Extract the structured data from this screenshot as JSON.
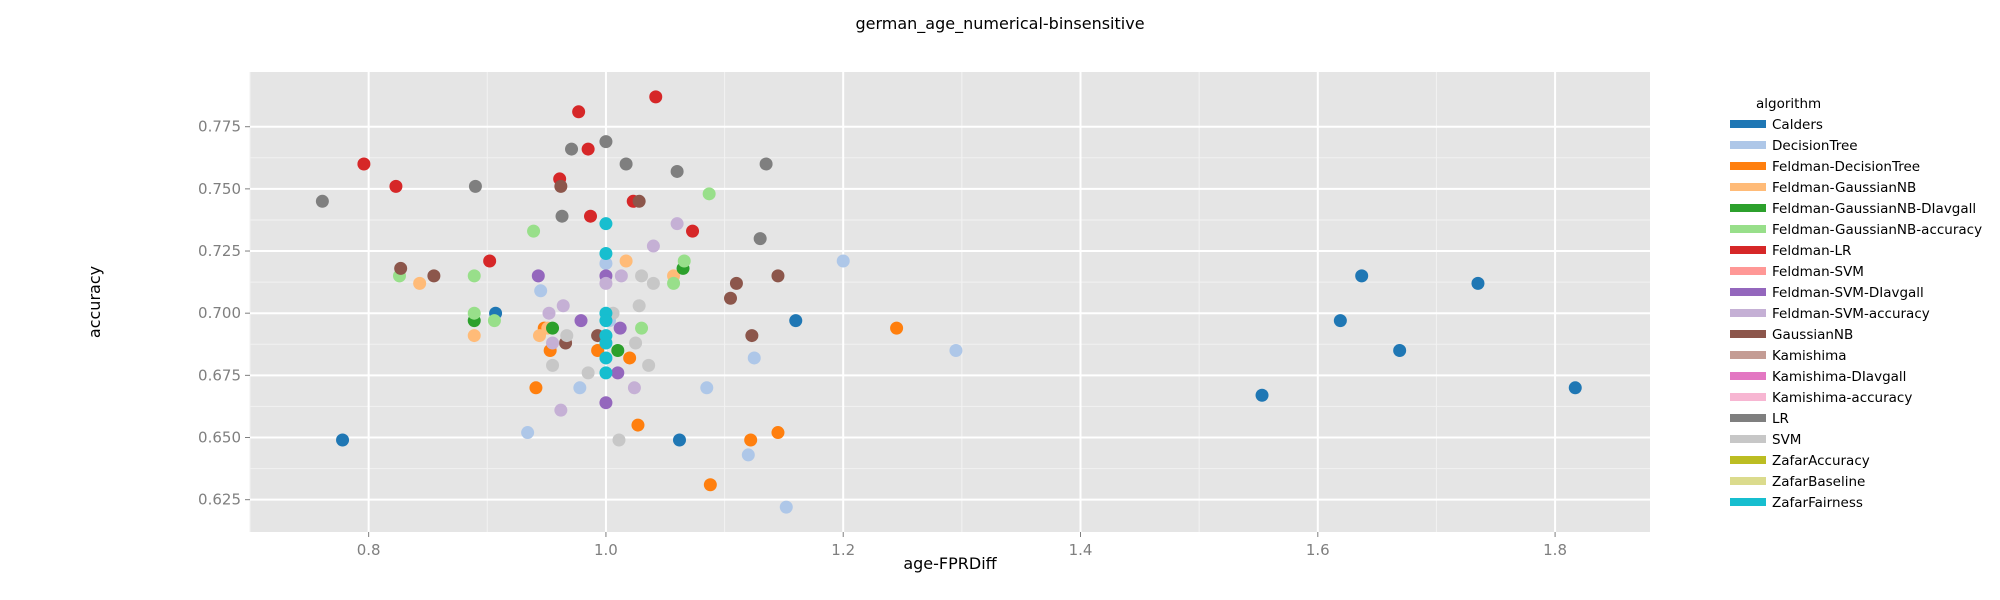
{
  "chart_data": {
    "type": "scatter",
    "title": "german_age_numerical-binsensitive",
    "xlabel": "age-FPRDiff",
    "ylabel": "accuracy",
    "xlim": [
      0.7,
      1.88
    ],
    "ylim": [
      0.612,
      0.797
    ],
    "x_ticks": [
      0.8,
      1.0,
      1.2,
      1.4,
      1.6,
      1.8
    ],
    "x_tick_labels": [
      "0.8",
      "1.0",
      "1.2",
      "1.4",
      "1.6",
      "1.8"
    ],
    "y_ticks": [
      0.625,
      0.65,
      0.675,
      0.7,
      0.725,
      0.75,
      0.775
    ],
    "y_tick_labels": [
      "0.625",
      "0.650",
      "0.675",
      "0.700",
      "0.725",
      "0.750",
      "0.775"
    ],
    "grid": true,
    "legend_title": "algorithm",
    "legend_position": "right",
    "series": [
      {
        "name": "Calders",
        "color": "#1f77b4",
        "points": [
          [
            0.778,
            0.649
          ],
          [
            0.907,
            0.7
          ],
          [
            1.062,
            0.649
          ],
          [
            1.16,
            0.697
          ],
          [
            1.553,
            0.667
          ],
          [
            1.619,
            0.697
          ],
          [
            1.637,
            0.715
          ],
          [
            1.669,
            0.685
          ],
          [
            1.735,
            0.712
          ],
          [
            1.817,
            0.67
          ]
        ]
      },
      {
        "name": "DecisionTree",
        "color": "#aec7e8",
        "points": [
          [
            0.934,
            0.652
          ],
          [
            0.945,
            0.709
          ],
          [
            0.978,
            0.67
          ],
          [
            1.0,
            0.72
          ],
          [
            1.085,
            0.67
          ],
          [
            1.12,
            0.643
          ],
          [
            1.125,
            0.682
          ],
          [
            1.152,
            0.622
          ],
          [
            1.2,
            0.721
          ],
          [
            1.295,
            0.685
          ],
          [
            1.003,
            0.697
          ]
        ]
      },
      {
        "name": "Feldman-DecisionTree",
        "color": "#ff7f0e",
        "points": [
          [
            0.941,
            0.67
          ],
          [
            0.953,
            0.685
          ],
          [
            0.993,
            0.685
          ],
          [
            1.02,
            0.682
          ],
          [
            1.027,
            0.655
          ],
          [
            1.088,
            0.631
          ],
          [
            1.122,
            0.649
          ],
          [
            1.145,
            0.652
          ],
          [
            1.245,
            0.694
          ],
          [
            0.948,
            0.694
          ]
        ]
      },
      {
        "name": "Feldman-GaussianNB",
        "color": "#ffbb78",
        "points": [
          [
            0.843,
            0.712
          ],
          [
            0.889,
            0.691
          ],
          [
            0.944,
            0.691
          ],
          [
            0.951,
            0.694
          ],
          [
            1.017,
            0.721
          ],
          [
            1.057,
            0.715
          ]
        ]
      },
      {
        "name": "Feldman-GaussianNB-DIavgall",
        "color": "#2ca02c",
        "points": [
          [
            0.889,
            0.697
          ],
          [
            0.955,
            0.694
          ],
          [
            1.01,
            0.685
          ],
          [
            1.065,
            0.718
          ]
        ]
      },
      {
        "name": "Feldman-GaussianNB-accuracy",
        "color": "#98df8a",
        "points": [
          [
            0.826,
            0.715
          ],
          [
            0.889,
            0.715
          ],
          [
            0.889,
            0.7
          ],
          [
            0.906,
            0.697
          ],
          [
            0.939,
            0.733
          ],
          [
            1.03,
            0.694
          ],
          [
            1.057,
            0.712
          ],
          [
            1.066,
            0.721
          ],
          [
            1.087,
            0.748
          ]
        ]
      },
      {
        "name": "Feldman-LR",
        "color": "#d62728",
        "points": [
          [
            0.796,
            0.76
          ],
          [
            0.823,
            0.751
          ],
          [
            0.902,
            0.721
          ],
          [
            0.961,
            0.754
          ],
          [
            0.977,
            0.781
          ],
          [
            0.985,
            0.766
          ],
          [
            0.987,
            0.739
          ],
          [
            1.023,
            0.745
          ],
          [
            1.042,
            0.787
          ],
          [
            1.073,
            0.733
          ]
        ]
      },
      {
        "name": "Feldman-SVM",
        "color": "#ff9896",
        "points": []
      },
      {
        "name": "Feldman-SVM-DIavgall",
        "color": "#9467bd",
        "points": [
          [
            0.943,
            0.715
          ],
          [
            0.979,
            0.697
          ],
          [
            1.0,
            0.664
          ],
          [
            1.0,
            0.715
          ],
          [
            1.01,
            0.676
          ],
          [
            1.012,
            0.694
          ]
        ]
      },
      {
        "name": "Feldman-SVM-accuracy",
        "color": "#c5b0d5",
        "points": [
          [
            0.952,
            0.7
          ],
          [
            0.955,
            0.688
          ],
          [
            0.962,
            0.661
          ],
          [
            0.964,
            0.703
          ],
          [
            1.0,
            0.712
          ],
          [
            1.013,
            0.715
          ],
          [
            1.024,
            0.67
          ],
          [
            1.04,
            0.727
          ],
          [
            1.06,
            0.736
          ]
        ]
      },
      {
        "name": "GaussianNB",
        "color": "#8c564b",
        "points": [
          [
            0.827,
            0.718
          ],
          [
            0.855,
            0.715
          ],
          [
            0.962,
            0.751
          ],
          [
            0.966,
            0.688
          ],
          [
            0.993,
            0.691
          ],
          [
            1.028,
            0.745
          ],
          [
            1.105,
            0.706
          ],
          [
            1.11,
            0.712
          ],
          [
            1.123,
            0.691
          ],
          [
            1.145,
            0.715
          ]
        ]
      },
      {
        "name": "Kamishima",
        "color": "#c49c94",
        "points": []
      },
      {
        "name": "Kamishima-DIavgall",
        "color": "#e377c2",
        "points": []
      },
      {
        "name": "Kamishima-accuracy",
        "color": "#f7b6d2",
        "points": []
      },
      {
        "name": "LR",
        "color": "#7f7f7f",
        "points": [
          [
            0.761,
            0.745
          ],
          [
            0.89,
            0.751
          ],
          [
            0.963,
            0.739
          ],
          [
            0.971,
            0.766
          ],
          [
            1.0,
            0.769
          ],
          [
            1.017,
            0.76
          ],
          [
            1.06,
            0.757
          ],
          [
            1.13,
            0.73
          ],
          [
            1.135,
            0.76
          ]
        ]
      },
      {
        "name": "SVM",
        "color": "#c7c7c7",
        "points": [
          [
            0.955,
            0.679
          ],
          [
            0.967,
            0.691
          ],
          [
            0.985,
            0.676
          ],
          [
            1.006,
            0.7
          ],
          [
            1.011,
            0.649
          ],
          [
            1.025,
            0.688
          ],
          [
            1.028,
            0.703
          ],
          [
            1.03,
            0.715
          ],
          [
            1.036,
            0.679
          ],
          [
            1.04,
            0.712
          ]
        ]
      },
      {
        "name": "ZafarAccuracy",
        "color": "#bcbd22",
        "points": []
      },
      {
        "name": "ZafarBaseline",
        "color": "#dbdb8d",
        "points": []
      },
      {
        "name": "ZafarFairness",
        "color": "#17becf",
        "points": [
          [
            1.0,
            0.736
          ],
          [
            1.0,
            0.724
          ],
          [
            1.0,
            0.7
          ],
          [
            1.0,
            0.697
          ],
          [
            1.0,
            0.691
          ],
          [
            1.0,
            0.688
          ],
          [
            1.0,
            0.682
          ],
          [
            1.0,
            0.676
          ]
        ]
      }
    ]
  }
}
